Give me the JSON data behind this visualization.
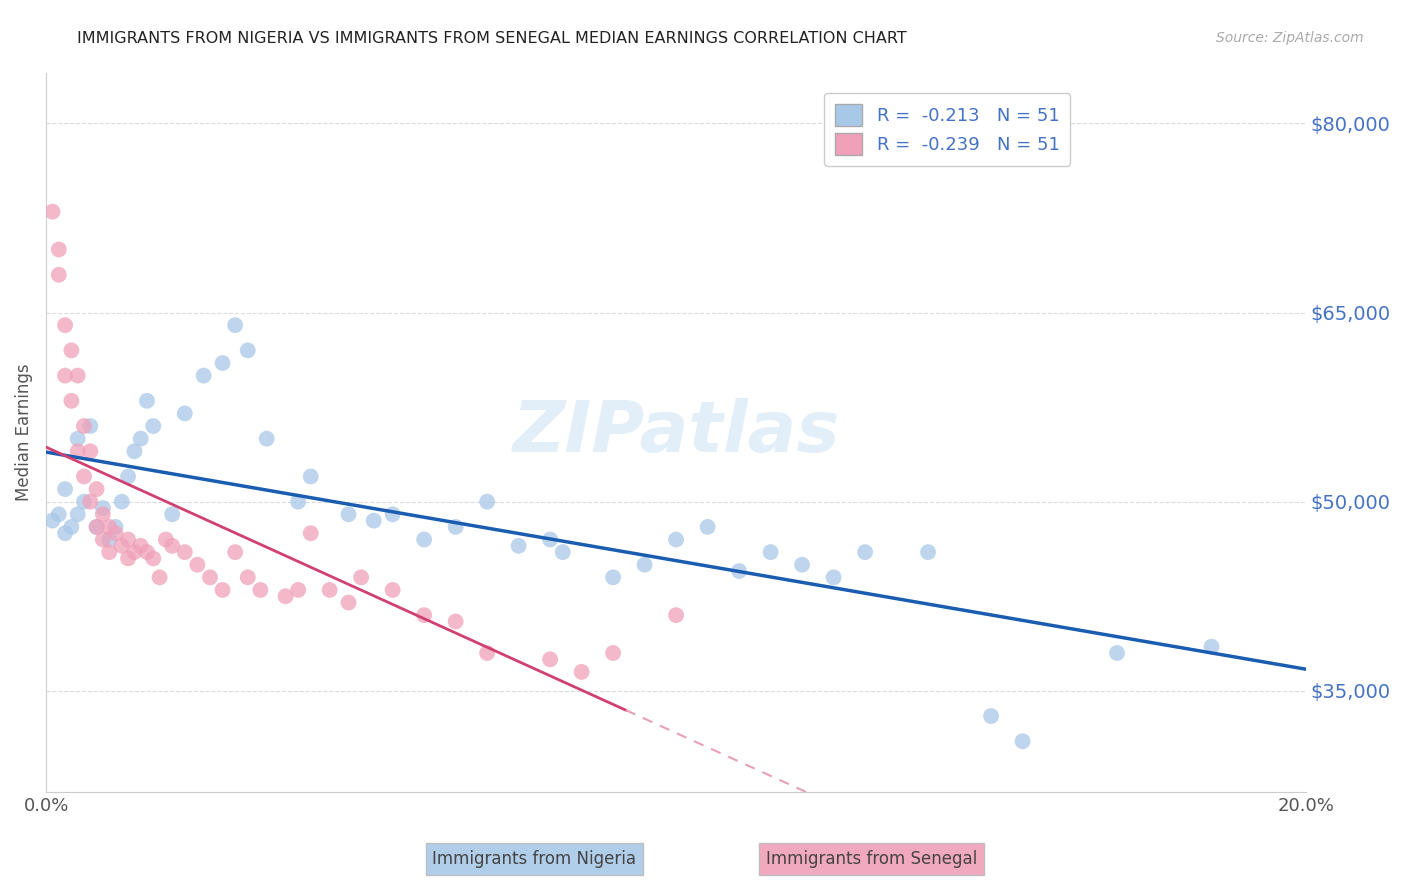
{
  "title": "IMMIGRANTS FROM NIGERIA VS IMMIGRANTS FROM SENEGAL MEDIAN EARNINGS CORRELATION CHART",
  "source": "Source: ZipAtlas.com",
  "ylabel": "Median Earnings",
  "r_nigeria": -0.213,
  "n_nigeria": 51,
  "r_senegal": -0.239,
  "n_senegal": 51,
  "nigeria_color": "#a8c8e8",
  "senegal_color": "#f0a0b8",
  "nigeria_line_color": "#1a5cb0",
  "senegal_line_color": "#d04070",
  "senegal_line_dash_color": "#e8a0b8",
  "xmin": 0.0,
  "xmax": 0.2,
  "ymin": 27000,
  "ymax": 84000,
  "yticks": [
    35000,
    50000,
    65000,
    80000
  ],
  "ytick_labels": [
    "$35,000",
    "$50,000",
    "$65,000",
    "$80,000"
  ],
  "background_color": "#ffffff",
  "grid_color": "#cccccc",
  "title_color": "#222222",
  "axis_color": "#555555",
  "right_label_color": "#4472c4",
  "nigeria_x": [
    0.001,
    0.002,
    0.003,
    0.003,
    0.004,
    0.005,
    0.005,
    0.006,
    0.007,
    0.008,
    0.009,
    0.01,
    0.011,
    0.012,
    0.013,
    0.014,
    0.015,
    0.016,
    0.017,
    0.02,
    0.022,
    0.025,
    0.028,
    0.03,
    0.032,
    0.035,
    0.04,
    0.042,
    0.048,
    0.052,
    0.055,
    0.06,
    0.065,
    0.07,
    0.075,
    0.08,
    0.082,
    0.09,
    0.095,
    0.1,
    0.105,
    0.11,
    0.115,
    0.12,
    0.125,
    0.13,
    0.14,
    0.15,
    0.155,
    0.17,
    0.185
  ],
  "nigeria_y": [
    48500,
    49000,
    47500,
    51000,
    48000,
    55000,
    49000,
    50000,
    56000,
    48000,
    49500,
    47000,
    48000,
    50000,
    52000,
    54000,
    55000,
    58000,
    56000,
    49000,
    57000,
    60000,
    61000,
    64000,
    62000,
    55000,
    50000,
    52000,
    49000,
    48500,
    49000,
    47000,
    48000,
    50000,
    46500,
    47000,
    46000,
    44000,
    45000,
    47000,
    48000,
    44500,
    46000,
    45000,
    44000,
    46000,
    46000,
    33000,
    31000,
    38000,
    38500
  ],
  "senegal_x": [
    0.001,
    0.002,
    0.002,
    0.003,
    0.003,
    0.004,
    0.004,
    0.005,
    0.005,
    0.006,
    0.006,
    0.007,
    0.007,
    0.008,
    0.008,
    0.009,
    0.009,
    0.01,
    0.01,
    0.011,
    0.012,
    0.013,
    0.013,
    0.014,
    0.015,
    0.016,
    0.017,
    0.018,
    0.019,
    0.02,
    0.022,
    0.024,
    0.026,
    0.028,
    0.03,
    0.032,
    0.034,
    0.038,
    0.04,
    0.042,
    0.045,
    0.048,
    0.05,
    0.055,
    0.06,
    0.065,
    0.07,
    0.08,
    0.085,
    0.09,
    0.1
  ],
  "senegal_y": [
    73000,
    68000,
    70000,
    64000,
    60000,
    62000,
    58000,
    60000,
    54000,
    56000,
    52000,
    54000,
    50000,
    51000,
    48000,
    49000,
    47000,
    48000,
    46000,
    47500,
    46500,
    47000,
    45500,
    46000,
    46500,
    46000,
    45500,
    44000,
    47000,
    46500,
    46000,
    45000,
    44000,
    43000,
    46000,
    44000,
    43000,
    42500,
    43000,
    47500,
    43000,
    42000,
    44000,
    43000,
    41000,
    40500,
    38000,
    37500,
    36500,
    38000,
    41000
  ]
}
